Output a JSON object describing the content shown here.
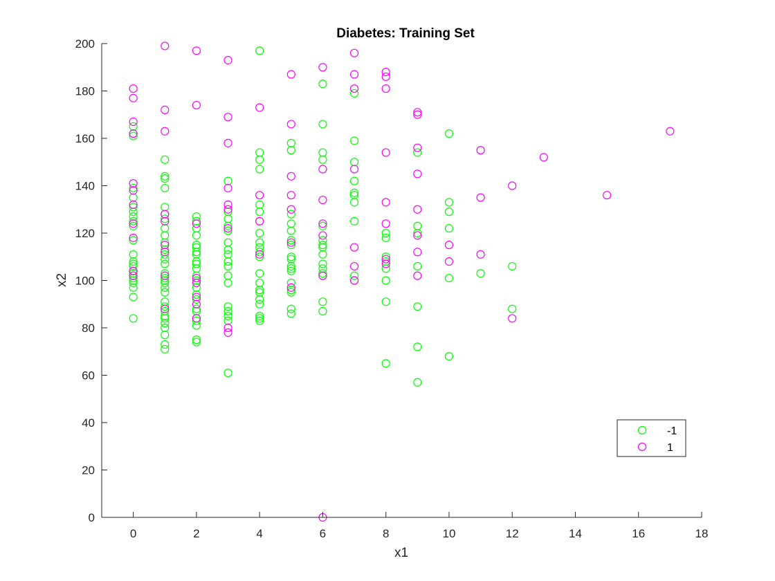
{
  "chart_data": {
    "type": "scatter",
    "title": "Diabetes: Training Set",
    "xlabel": "x1",
    "ylabel": "x2",
    "xlim": [
      -1,
      18
    ],
    "ylim": [
      0,
      200
    ],
    "xticks": [
      0,
      2,
      4,
      6,
      8,
      10,
      12,
      14,
      16,
      18
    ],
    "yticks": [
      0,
      20,
      40,
      60,
      80,
      100,
      120,
      140,
      160,
      180,
      200
    ],
    "grid": false,
    "legend_position": "bottom-right",
    "marker": "open-circle",
    "series": [
      {
        "name": "-1",
        "color": "#00ff00",
        "points": [
          [
            0,
            84
          ],
          [
            0,
            93
          ],
          [
            0,
            97
          ],
          [
            0,
            99
          ],
          [
            0,
            100
          ],
          [
            0,
            101
          ],
          [
            0,
            103
          ],
          [
            0,
            104
          ],
          [
            0,
            106
          ],
          [
            0,
            107
          ],
          [
            0,
            108
          ],
          [
            0,
            111
          ],
          [
            0,
            117
          ],
          [
            0,
            123
          ],
          [
            0,
            125
          ],
          [
            0,
            127
          ],
          [
            0,
            129
          ],
          [
            0,
            131
          ],
          [
            0,
            135
          ],
          [
            0,
            139
          ],
          [
            0,
            161
          ],
          [
            0,
            162
          ],
          [
            0,
            165
          ],
          [
            1,
            71
          ],
          [
            1,
            73
          ],
          [
            1,
            77
          ],
          [
            1,
            80
          ],
          [
            1,
            82
          ],
          [
            1,
            84
          ],
          [
            1,
            85
          ],
          [
            1,
            87
          ],
          [
            1,
            89
          ],
          [
            1,
            91
          ],
          [
            1,
            95
          ],
          [
            1,
            97
          ],
          [
            1,
            99
          ],
          [
            1,
            100
          ],
          [
            1,
            101
          ],
          [
            1,
            103
          ],
          [
            1,
            107
          ],
          [
            1,
            109
          ],
          [
            1,
            111
          ],
          [
            1,
            113
          ],
          [
            1,
            116
          ],
          [
            1,
            119
          ],
          [
            1,
            122
          ],
          [
            1,
            126
          ],
          [
            1,
            128
          ],
          [
            1,
            131
          ],
          [
            1,
            139
          ],
          [
            1,
            143
          ],
          [
            1,
            144
          ],
          [
            1,
            151
          ],
          [
            2,
            74
          ],
          [
            2,
            75
          ],
          [
            2,
            81
          ],
          [
            2,
            83
          ],
          [
            2,
            84
          ],
          [
            2,
            87
          ],
          [
            2,
            88
          ],
          [
            2,
            92
          ],
          [
            2,
            94
          ],
          [
            2,
            97
          ],
          [
            2,
            99
          ],
          [
            2,
            100
          ],
          [
            2,
            102
          ],
          [
            2,
            105
          ],
          [
            2,
            107
          ],
          [
            2,
            108
          ],
          [
            2,
            111
          ],
          [
            2,
            112
          ],
          [
            2,
            114
          ],
          [
            2,
            115
          ],
          [
            2,
            119
          ],
          [
            2,
            122
          ],
          [
            2,
            125
          ],
          [
            2,
            127
          ],
          [
            3,
            61
          ],
          [
            3,
            83
          ],
          [
            3,
            85
          ],
          [
            3,
            87
          ],
          [
            3,
            89
          ],
          [
            3,
            99
          ],
          [
            3,
            102
          ],
          [
            3,
            106
          ],
          [
            3,
            108
          ],
          [
            3,
            111
          ],
          [
            3,
            113
          ],
          [
            3,
            116
          ],
          [
            3,
            121
          ],
          [
            3,
            123
          ],
          [
            3,
            126
          ],
          [
            3,
            129
          ],
          [
            3,
            142
          ],
          [
            4,
            83
          ],
          [
            4,
            84
          ],
          [
            4,
            85
          ],
          [
            4,
            90
          ],
          [
            4,
            92
          ],
          [
            4,
            95
          ],
          [
            4,
            96
          ],
          [
            4,
            99
          ],
          [
            4,
            103
          ],
          [
            4,
            110
          ],
          [
            4,
            112
          ],
          [
            4,
            114
          ],
          [
            4,
            116
          ],
          [
            4,
            120
          ],
          [
            4,
            125
          ],
          [
            4,
            129
          ],
          [
            4,
            132
          ],
          [
            4,
            147
          ],
          [
            4,
            151
          ],
          [
            4,
            154
          ],
          [
            4,
            197
          ],
          [
            5,
            86
          ],
          [
            5,
            88
          ],
          [
            5,
            95
          ],
          [
            5,
            96
          ],
          [
            5,
            99
          ],
          [
            5,
            104
          ],
          [
            5,
            105
          ],
          [
            5,
            106
          ],
          [
            5,
            109
          ],
          [
            5,
            110
          ],
          [
            5,
            115
          ],
          [
            5,
            117
          ],
          [
            5,
            121
          ],
          [
            5,
            124
          ],
          [
            5,
            128
          ],
          [
            5,
            155
          ],
          [
            5,
            158
          ],
          [
            6,
            87
          ],
          [
            6,
            91
          ],
          [
            6,
            102
          ],
          [
            6,
            103
          ],
          [
            6,
            105
          ],
          [
            6,
            107
          ],
          [
            6,
            111
          ],
          [
            6,
            114
          ],
          [
            6,
            115
          ],
          [
            6,
            117
          ],
          [
            6,
            123
          ],
          [
            6,
            151
          ],
          [
            6,
            154
          ],
          [
            6,
            166
          ],
          [
            6,
            183
          ],
          [
            7,
            100
          ],
          [
            7,
            102
          ],
          [
            7,
            125
          ],
          [
            7,
            133
          ],
          [
            7,
            136
          ],
          [
            7,
            137
          ],
          [
            7,
            142
          ],
          [
            7,
            150
          ],
          [
            7,
            159
          ],
          [
            7,
            179
          ],
          [
            8,
            65
          ],
          [
            8,
            91
          ],
          [
            8,
            100
          ],
          [
            8,
            105
          ],
          [
            8,
            108
          ],
          [
            8,
            110
          ],
          [
            8,
            118
          ],
          [
            8,
            120
          ],
          [
            9,
            57
          ],
          [
            9,
            72
          ],
          [
            9,
            89
          ],
          [
            9,
            106
          ],
          [
            9,
            120
          ],
          [
            9,
            123
          ],
          [
            9,
            154
          ],
          [
            10,
            68
          ],
          [
            10,
            101
          ],
          [
            10,
            122
          ],
          [
            10,
            129
          ],
          [
            10,
            133
          ],
          [
            10,
            162
          ],
          [
            11,
            103
          ],
          [
            12,
            88
          ],
          [
            12,
            106
          ]
        ]
      },
      {
        "name": "1",
        "color": "#ff00ff",
        "points": [
          [
            0,
            102
          ],
          [
            0,
            104
          ],
          [
            0,
            118
          ],
          [
            0,
            124
          ],
          [
            0,
            132
          ],
          [
            0,
            138
          ],
          [
            0,
            141
          ],
          [
            0,
            162
          ],
          [
            0,
            167
          ],
          [
            0,
            177
          ],
          [
            0,
            181
          ],
          [
            1,
            88
          ],
          [
            1,
            102
          ],
          [
            1,
            112
          ],
          [
            1,
            115
          ],
          [
            1,
            125
          ],
          [
            1,
            128
          ],
          [
            1,
            163
          ],
          [
            1,
            172
          ],
          [
            1,
            199
          ],
          [
            2,
            84
          ],
          [
            2,
            90
          ],
          [
            2,
            93
          ],
          [
            2,
            99
          ],
          [
            2,
            101
          ],
          [
            2,
            124
          ],
          [
            2,
            174
          ],
          [
            2,
            197
          ],
          [
            3,
            78
          ],
          [
            3,
            80
          ],
          [
            3,
            122
          ],
          [
            3,
            130
          ],
          [
            3,
            132
          ],
          [
            3,
            139
          ],
          [
            3,
            158
          ],
          [
            3,
            169
          ],
          [
            3,
            193
          ],
          [
            4,
            111
          ],
          [
            4,
            125
          ],
          [
            4,
            136
          ],
          [
            4,
            173
          ],
          [
            5,
            97
          ],
          [
            5,
            116
          ],
          [
            5,
            130
          ],
          [
            5,
            136
          ],
          [
            5,
            144
          ],
          [
            5,
            166
          ],
          [
            5,
            187
          ],
          [
            6,
            0
          ],
          [
            6,
            102
          ],
          [
            6,
            119
          ],
          [
            6,
            124
          ],
          [
            6,
            134
          ],
          [
            6,
            147
          ],
          [
            6,
            190
          ],
          [
            7,
            100
          ],
          [
            7,
            106
          ],
          [
            7,
            114
          ],
          [
            7,
            147
          ],
          [
            7,
            181
          ],
          [
            7,
            187
          ],
          [
            7,
            196
          ],
          [
            8,
            107
          ],
          [
            8,
            109
          ],
          [
            8,
            124
          ],
          [
            8,
            133
          ],
          [
            8,
            154
          ],
          [
            8,
            181
          ],
          [
            8,
            186
          ],
          [
            8,
            188
          ],
          [
            9,
            102
          ],
          [
            9,
            112
          ],
          [
            9,
            119
          ],
          [
            9,
            130
          ],
          [
            9,
            145
          ],
          [
            9,
            156
          ],
          [
            9,
            170
          ],
          [
            9,
            171
          ],
          [
            10,
            108
          ],
          [
            10,
            115
          ],
          [
            11,
            111
          ],
          [
            11,
            135
          ],
          [
            11,
            155
          ],
          [
            12,
            84
          ],
          [
            12,
            140
          ],
          [
            13,
            152
          ],
          [
            15,
            136
          ],
          [
            17,
            163
          ]
        ]
      }
    ]
  }
}
